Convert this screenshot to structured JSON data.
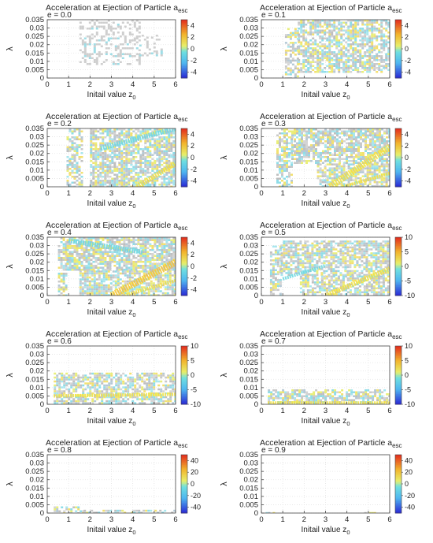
{
  "figure": {
    "title_prefix": "Acceleration at Ejection of Particle ",
    "title_symbol": "a",
    "title_subscript": "esc",
    "xlabel_prefix": "Initail value ",
    "xlabel_symbol": "z",
    "xlabel_subscript": "0",
    "ylabel": "λ"
  },
  "chart_data": [
    {
      "type": "heatmap",
      "panel": "e = 0.0",
      "label": "e = 0.0",
      "x_ticks": [
        "0",
        "1",
        "2",
        "3",
        "4",
        "5",
        "6"
      ],
      "xlim": [
        0,
        6
      ],
      "y_ticks": [
        "0",
        "0.005",
        "0.01",
        "0.015",
        "0.02",
        "0.025",
        "0.03",
        "0.035"
      ],
      "ylim": [
        0,
        0.035
      ],
      "colorbar": {
        "ticks": [
          "4",
          "2",
          "0",
          "-2",
          "-4"
        ],
        "range": [
          -5,
          5
        ]
      },
      "regions": [
        {
          "x": [
            1.5,
            4.3
          ],
          "y_bottom": 0.008,
          "y_top": 0.035,
          "texture": "sparse-gray",
          "density": 0.35
        },
        {
          "x": [
            4.3,
            5.3
          ],
          "y_bottom": 0.012,
          "y_top": 0.026,
          "texture": "sparse-gray",
          "density": 0.2
        }
      ],
      "features": []
    },
    {
      "type": "heatmap",
      "panel": "e = 0.1",
      "label": "e = 0.1",
      "x_ticks": [
        "0",
        "1",
        "2",
        "3",
        "4",
        "5",
        "6"
      ],
      "xlim": [
        0,
        6
      ],
      "y_ticks": [
        "0",
        "0.005",
        "0.01",
        "0.015",
        "0.02",
        "0.025",
        "0.03",
        "0.035"
      ],
      "ylim": [
        0,
        0.035
      ],
      "colorbar": {
        "ticks": [
          "4",
          "2",
          "0",
          "-2",
          "-4"
        ],
        "range": [
          -5,
          5
        ]
      },
      "regions": [
        {
          "x": [
            1.1,
            1.7
          ],
          "y_bottom": 0.0,
          "y_top": 0.03,
          "texture": "mixed",
          "density": 0.55
        },
        {
          "x": [
            1.7,
            6.0
          ],
          "y_bottom": 0.004,
          "y_top": 0.035,
          "texture": "mixed",
          "density": 0.7
        }
      ],
      "features": []
    },
    {
      "type": "heatmap",
      "panel": "e = 0.2",
      "label": "e = 0.2",
      "x_ticks": [
        "0",
        "1",
        "2",
        "3",
        "4",
        "5",
        "6"
      ],
      "xlim": [
        0,
        6
      ],
      "y_ticks": [
        "0",
        "0.005",
        "0.01",
        "0.015",
        "0.02",
        "0.025",
        "0.03",
        "0.035"
      ],
      "ylim": [
        0,
        0.035
      ],
      "colorbar": {
        "ticks": [
          "4",
          "2",
          "0",
          "-2",
          "-4"
        ],
        "range": [
          -5,
          5
        ]
      },
      "regions": [
        {
          "x": [
            0.9,
            1.6
          ],
          "y_bottom": 0.0,
          "y_top": 0.035,
          "texture": "mixed",
          "density": 0.6
        },
        {
          "x": [
            2.0,
            6.0
          ],
          "y_bottom": 0.0,
          "y_top": 0.035,
          "texture": "mixed",
          "density": 0.75
        }
      ],
      "features": [
        {
          "kind": "band",
          "x0": 4.2,
          "y0": 0.0,
          "x1": 6.0,
          "y1": 0.014,
          "width": 0.003,
          "color": "#f0e040"
        },
        {
          "kind": "band",
          "x0": 2.5,
          "y0": 0.023,
          "x1": 6.0,
          "y1": 0.035,
          "width": 0.003,
          "color": "#6cd8e0"
        }
      ]
    },
    {
      "type": "heatmap",
      "panel": "e = 0.3",
      "label": "e = 0.3",
      "x_ticks": [
        "0",
        "1",
        "2",
        "3",
        "4",
        "5",
        "6"
      ],
      "xlim": [
        0,
        6
      ],
      "y_ticks": [
        "0",
        "0.005",
        "0.01",
        "0.015",
        "0.02",
        "0.025",
        "0.03",
        "0.035"
      ],
      "ylim": [
        0,
        0.035
      ],
      "colorbar": {
        "ticks": [
          "4",
          "2",
          "0",
          "-2",
          "-4"
        ],
        "range": [
          -5,
          5
        ]
      },
      "regions": [
        {
          "x": [
            0.7,
            1.4
          ],
          "y_bottom": 0.0,
          "y_top": 0.035,
          "texture": "mixed",
          "density": 0.6
        },
        {
          "x": [
            1.4,
            6.0
          ],
          "y_bottom": 0.014,
          "y_top": 0.035,
          "texture": "mixed",
          "density": 0.75
        },
        {
          "x": [
            2.6,
            6.0
          ],
          "y_bottom": 0.0,
          "y_top": 0.014,
          "texture": "mixed",
          "density": 0.75
        }
      ],
      "features": [
        {
          "kind": "band",
          "x0": 3.2,
          "y0": 0.0,
          "x1": 6.0,
          "y1": 0.024,
          "width": 0.004,
          "color": "#f0e040"
        },
        {
          "kind": "band",
          "x0": 3.8,
          "y0": 0.0,
          "x1": 6.0,
          "y1": 0.008,
          "width": 0.002,
          "color": "#f0e040"
        }
      ]
    },
    {
      "type": "heatmap",
      "panel": "e = 0.4",
      "label": "e = 0.4",
      "x_ticks": [
        "0",
        "1",
        "2",
        "3",
        "4",
        "5",
        "6"
      ],
      "xlim": [
        0,
        6
      ],
      "y_ticks": [
        "0",
        "0.005",
        "0.01",
        "0.015",
        "0.02",
        "0.025",
        "0.03",
        "0.035"
      ],
      "ylim": [
        0,
        0.035
      ],
      "colorbar": {
        "ticks": [
          "4",
          "2",
          "0",
          "-2",
          "-4"
        ],
        "range": [
          -5,
          5
        ]
      },
      "regions": [
        {
          "x": [
            0.5,
            0.9
          ],
          "y_bottom": 0.0,
          "y_top": 0.035,
          "texture": "mixed",
          "density": 0.65
        },
        {
          "x": [
            0.9,
            6.0
          ],
          "y_bottom": 0.015,
          "y_top": 0.035,
          "texture": "mixed",
          "density": 0.8
        },
        {
          "x": [
            1.5,
            6.0
          ],
          "y_bottom": 0.0,
          "y_top": 0.015,
          "texture": "mixed",
          "density": 0.75
        }
      ],
      "features": [
        {
          "kind": "band",
          "x0": 3.0,
          "y0": 0.0,
          "x1": 6.0,
          "y1": 0.02,
          "width": 0.004,
          "color": "#f6c531"
        },
        {
          "kind": "band",
          "x0": 3.6,
          "y0": 0.0,
          "x1": 6.0,
          "y1": 0.009,
          "width": 0.002,
          "color": "#f0e040"
        },
        {
          "kind": "band",
          "x0": 1.0,
          "y0": 0.033,
          "x1": 4.5,
          "y1": 0.026,
          "width": 0.003,
          "color": "#6cd8e0"
        }
      ]
    },
    {
      "type": "heatmap",
      "panel": "e = 0.5",
      "label": "e = 0.5",
      "x_ticks": [
        "0",
        "1",
        "2",
        "3",
        "4",
        "5",
        "6"
      ],
      "xlim": [
        0,
        6
      ],
      "y_ticks": [
        "0",
        "0.005",
        "0.01",
        "0.015",
        "0.02",
        "0.025",
        "0.03",
        "0.035"
      ],
      "ylim": [
        0,
        0.035
      ],
      "colorbar": {
        "ticks": [
          "10",
          "5",
          "0",
          "-5",
          "-10"
        ],
        "range": [
          -10,
          10
        ]
      },
      "regions": [
        {
          "x": [
            0.4,
            0.9
          ],
          "y_bottom": 0.0,
          "y_top": 0.03,
          "texture": "mixed",
          "density": 0.65
        },
        {
          "x": [
            0.9,
            6.0
          ],
          "y_bottom": 0.012,
          "y_top": 0.033,
          "texture": "mixed",
          "density": 0.75
        },
        {
          "x": [
            1.8,
            6.0
          ],
          "y_bottom": 0.0,
          "y_top": 0.012,
          "texture": "mixed",
          "density": 0.7
        }
      ],
      "features": [
        {
          "kind": "band",
          "x0": 3.0,
          "y0": 0.0,
          "x1": 6.0,
          "y1": 0.016,
          "width": 0.003,
          "color": "#f0e040"
        },
        {
          "kind": "band",
          "x0": 1.0,
          "y0": 0.01,
          "x1": 3.0,
          "y1": 0.018,
          "width": 0.002,
          "color": "#6cd8e0"
        }
      ]
    },
    {
      "type": "heatmap",
      "panel": "e = 0.6",
      "label": "e = 0.6",
      "x_ticks": [
        "0",
        "1",
        "2",
        "3",
        "4",
        "5",
        "6"
      ],
      "xlim": [
        0,
        6
      ],
      "y_ticks": [
        "0",
        "0.005",
        "0.01",
        "0.015",
        "0.02",
        "0.025",
        "0.03",
        "0.035"
      ],
      "ylim": [
        0,
        0.035
      ],
      "colorbar": {
        "ticks": [
          "10",
          "5",
          "0",
          "-5",
          "-10"
        ],
        "range": [
          -10,
          10
        ]
      },
      "regions": [
        {
          "x": [
            0.3,
            6.0
          ],
          "y_bottom": 0.0,
          "y_top": 0.019,
          "texture": "mixed",
          "density": 0.7
        }
      ],
      "features": [
        {
          "kind": "band",
          "x0": 0.3,
          "y0": 0.005,
          "x1": 6.0,
          "y1": 0.006,
          "width": 0.002,
          "color": "#f0e040"
        }
      ]
    },
    {
      "type": "heatmap",
      "panel": "e = 0.7",
      "label": "e = 0.7",
      "x_ticks": [
        "0",
        "1",
        "2",
        "3",
        "4",
        "5",
        "6"
      ],
      "xlim": [
        0,
        6
      ],
      "y_ticks": [
        "0",
        "0.005",
        "0.01",
        "0.015",
        "0.02",
        "0.025",
        "0.03",
        "0.035"
      ],
      "ylim": [
        0,
        0.035
      ],
      "colorbar": {
        "ticks": [
          "10",
          "5",
          "0",
          "-5",
          "-10"
        ],
        "range": [
          -10,
          10
        ]
      },
      "regions": [
        {
          "x": [
            0.3,
            6.0
          ],
          "y_bottom": 0.0,
          "y_top": 0.009,
          "texture": "mixed",
          "density": 0.7
        }
      ],
      "features": [
        {
          "kind": "band",
          "x0": 0.3,
          "y0": 0.001,
          "x1": 6.0,
          "y1": 0.001,
          "width": 0.0015,
          "color": "#f0e040"
        }
      ]
    },
    {
      "type": "heatmap",
      "panel": "e = 0.8",
      "label": "e = 0.8",
      "x_ticks": [
        "0",
        "1",
        "2",
        "3",
        "4",
        "5",
        "6"
      ],
      "xlim": [
        0,
        6
      ],
      "y_ticks": [
        "0",
        "0.005",
        "0.01",
        "0.015",
        "0.02",
        "0.025",
        "0.03",
        "0.035"
      ],
      "ylim": [
        0,
        0.035
      ],
      "colorbar": {
        "ticks": [
          "40",
          "20",
          "0",
          "-20",
          "-40"
        ],
        "range": [
          -50,
          50
        ]
      },
      "regions": [
        {
          "x": [
            0.3,
            1.7
          ],
          "y_bottom": 0.0,
          "y_top": 0.004,
          "texture": "mixed",
          "density": 0.6
        },
        {
          "x": [
            1.7,
            6.0
          ],
          "y_bottom": 0.0,
          "y_top": 0.002,
          "texture": "mixed",
          "density": 0.55
        }
      ],
      "features": []
    },
    {
      "type": "heatmap",
      "panel": "e = 0.9",
      "label": "e = 0.9",
      "x_ticks": [
        "0",
        "1",
        "2",
        "3",
        "4",
        "5",
        "6"
      ],
      "xlim": [
        0,
        6
      ],
      "y_ticks": [
        "0",
        "0.005",
        "0.01",
        "0.015",
        "0.02",
        "0.025",
        "0.03",
        "0.035"
      ],
      "ylim": [
        0,
        0.035
      ],
      "colorbar": {
        "ticks": [
          "40",
          "20",
          "0",
          "-20",
          "-40"
        ],
        "range": [
          -50,
          50
        ]
      },
      "regions": [
        {
          "x": [
            0.2,
            0.7
          ],
          "y_bottom": 0.0,
          "y_top": 0.0006,
          "texture": "mixed",
          "density": 0.5
        },
        {
          "x": [
            4.7,
            5.3
          ],
          "y_bottom": 0.0,
          "y_top": 0.0006,
          "texture": "mixed",
          "density": 0.5
        }
      ],
      "features": []
    }
  ]
}
